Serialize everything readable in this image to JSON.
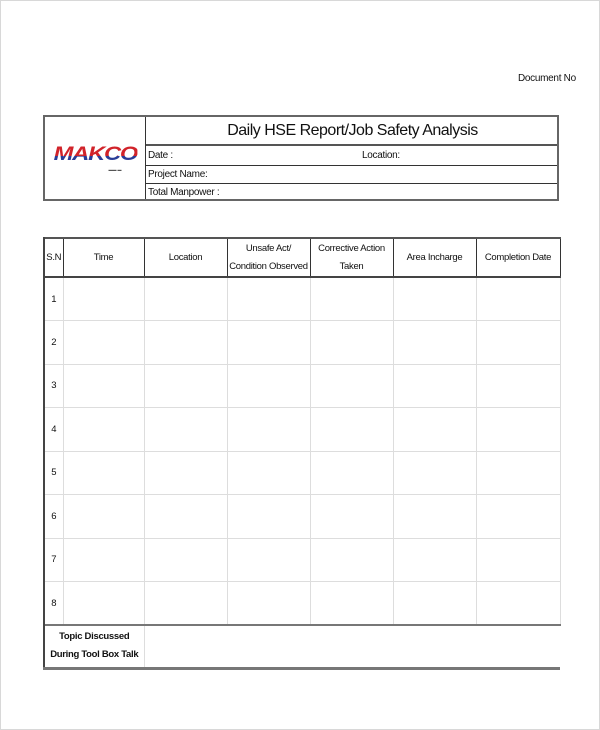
{
  "document_no_label": "Document No",
  "header": {
    "logo_text": "MAKCO",
    "title": "Daily HSE Report/Job Safety Analysis",
    "date_label": "Date :",
    "location_label": "Location:",
    "project_label": "Project Name:",
    "manpower_label": "Total Manpower :"
  },
  "table": {
    "columns": [
      "S.N",
      "Time",
      "Location",
      "Unsafe Act/ Condition Observed",
      "Corrective Action Taken",
      "Area Incharge",
      "Completion Date"
    ],
    "rows": [
      "1",
      "2",
      "3",
      "4",
      "5",
      "6",
      "7",
      "8"
    ],
    "topic_label": "Topic Discussed During Tool Box Talk"
  },
  "colors": {
    "logo_red": "#d1232a",
    "logo_blue": "#2a3c96"
  }
}
